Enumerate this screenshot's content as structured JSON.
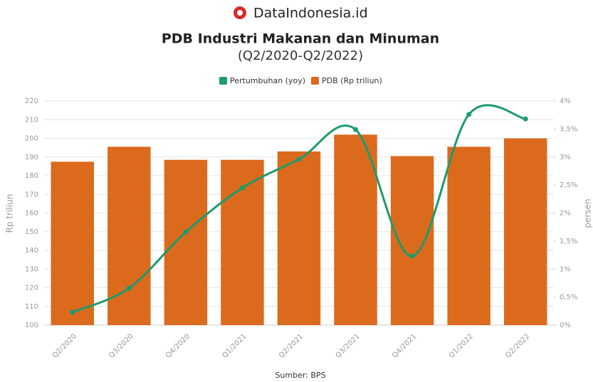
{
  "brand": "DataIndonesia.id",
  "source": "Sumber: BPS",
  "chart_data": {
    "type": "bar",
    "title": "PDB Industri Makanan dan Minuman",
    "subtitle": "(Q2/2020-Q2/2022)",
    "y_label": "Rp triliun",
    "y2_label": "persen",
    "categories": [
      "Q2/2020",
      "Q3/2020",
      "Q4/2020",
      "Q1/2021",
      "Q2/2021",
      "Q3/2021",
      "Q4/2021",
      "Q1/2022",
      "Q2/2022"
    ],
    "series": [
      {
        "name": "Pertumbuhan (yoy)",
        "type": "line",
        "axis": "y2",
        "color": "#1e9b6b",
        "values": [
          0.23,
          0.66,
          1.66,
          2.45,
          2.96,
          3.49,
          1.23,
          3.76,
          3.68
        ]
      },
      {
        "name": "PDB (Rp triliun)",
        "type": "bar",
        "color": "#dc6a1d",
        "values": [
          187.5,
          195.5,
          188.5,
          188.5,
          193,
          202,
          190.5,
          195.5,
          200
        ]
      }
    ],
    "ylim": [
      100,
      220
    ],
    "yticks": [
      100,
      110,
      120,
      130,
      140,
      150,
      160,
      170,
      180,
      190,
      200,
      210,
      220
    ],
    "y2lim": [
      0,
      4
    ],
    "y2ticks": [
      {
        "value": 0,
        "label": "0%"
      },
      {
        "value": 0.5,
        "label": "0,5%"
      },
      {
        "value": 1,
        "label": "1%"
      },
      {
        "value": 1.5,
        "label": "1,5%"
      },
      {
        "value": 2,
        "label": "2%"
      },
      {
        "value": 2.5,
        "label": "2,5%"
      },
      {
        "value": 3,
        "label": "3%"
      },
      {
        "value": 3.5,
        "label": "3,5%"
      },
      {
        "value": 4,
        "label": "4%"
      }
    ],
    "grid": true,
    "legend": "top"
  }
}
